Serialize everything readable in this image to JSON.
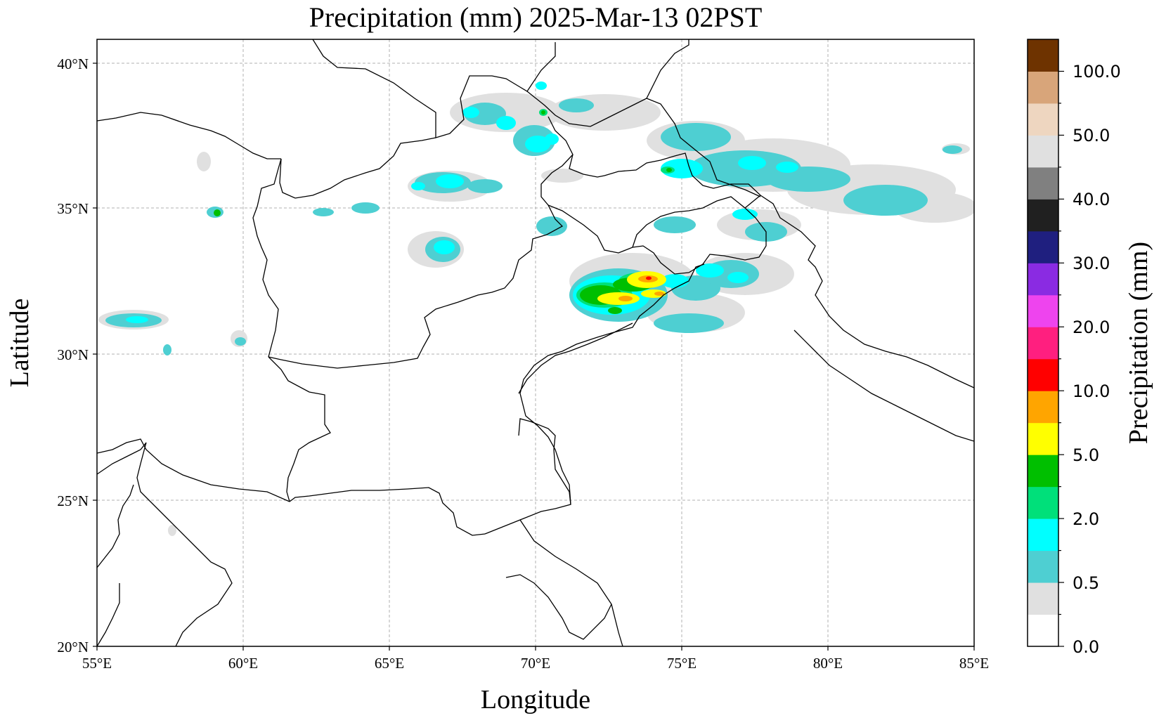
{
  "map": {
    "title": "Precipitation (mm)  2025-Mar-13 02PST",
    "xlabel": "Longitude",
    "ylabel": "Latitude",
    "lon_range": [
      55,
      85
    ],
    "lat_range": [
      20,
      40.8
    ],
    "lon_ticks": [
      "55°E",
      "60°E",
      "65°E",
      "70°E",
      "75°E",
      "80°E",
      "85°E"
    ],
    "lat_ticks": [
      "20°N",
      "25°N",
      "30°N",
      "35°N",
      "40°N"
    ],
    "gridlines": true
  },
  "colorbar": {
    "label": "Precipitation (mm)",
    "tick_labels": [
      "0.0",
      "0.5",
      "2.0",
      "5.0",
      "10.0",
      "20.0",
      "30.0",
      "40.0",
      "50.0",
      "100.0"
    ],
    "colors": [
      "#ffffff",
      "#e0e0e0",
      "#4ecfd2",
      "#00ffff",
      "#00e07a",
      "#00bf00",
      "#ffff00",
      "#ffa500",
      "#ff0000",
      "#ff1f7f",
      "#ee44ee",
      "#8a2be2",
      "#1f1f7f",
      "#202020",
      "#808080",
      "#e0e0e0",
      "#eed6c0",
      "#d8a57a",
      "#6e3300"
    ]
  }
}
